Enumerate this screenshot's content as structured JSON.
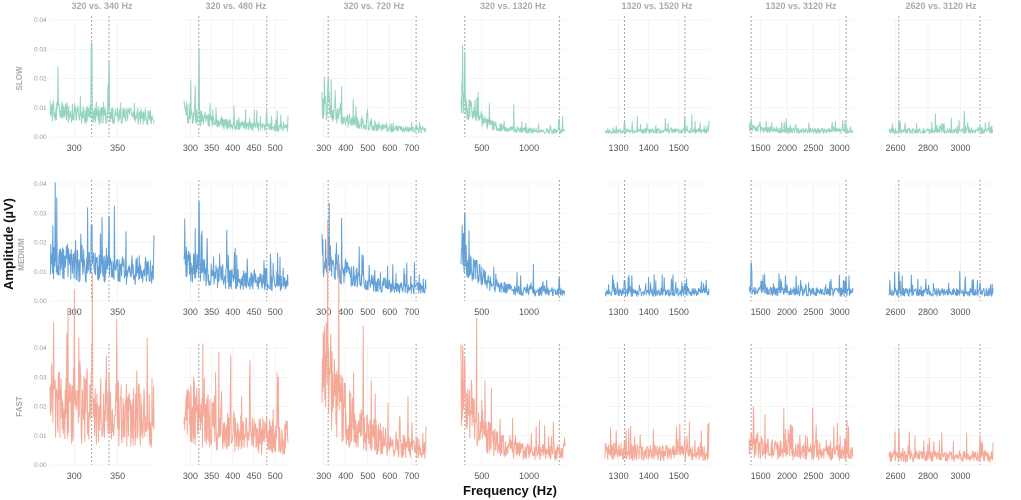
{
  "chart_data": {
    "type": "line",
    "title": "",
    "xlabel": "Frequency (Hz)",
    "ylabel": "Amplitude (µV)",
    "ylim": [
      0,
      0.04
    ],
    "y_ticks": [
      "0.00",
      "0.01",
      "0.02",
      "0.03",
      "0.04"
    ],
    "rows": [
      {
        "name": "SLOW",
        "label": "SLOW",
        "color": "#8fd3b8",
        "noise_factor": 1.0
      },
      {
        "name": "MEDIUM",
        "label": "MEDIUM",
        "color": "#5b9bd5",
        "noise_factor": 1.1
      },
      {
        "name": "FAST",
        "label": "FAST",
        "color": "#f4a494",
        "noise_factor": 1.5
      }
    ],
    "panels": [
      {
        "title": "320 vs. 340 Hz",
        "xlim": [
          272,
          392
        ],
        "xticks": [
          300,
          350
        ],
        "markers": [
          320,
          340
        ],
        "start": {
          "SLOW": 0.009,
          "MEDIUM": 0.014,
          "FAST": 0.022
        },
        "end": {
          "SLOW": 0.006,
          "MEDIUM": 0.009,
          "FAST": 0.015
        },
        "peaks": [
          {
            "freq": 320,
            "SLOW": 0.032,
            "MEDIUM": 0.026,
            "FAST": 0.032
          },
          {
            "freq": 340,
            "SLOW": 0.026,
            "MEDIUM": 0.029,
            "FAST": 0.031
          }
        ]
      },
      {
        "title": "320 vs. 480 Hz",
        "xlim": [
          285,
          530
        ],
        "xticks": [
          300,
          350,
          400,
          450,
          500
        ],
        "markers": [
          320,
          480
        ],
        "start": {
          "SLOW": 0.009,
          "MEDIUM": 0.014,
          "FAST": 0.022
        },
        "end": {
          "SLOW": 0.003,
          "MEDIUM": 0.006,
          "FAST": 0.009
        },
        "peaks": [
          {
            "freq": 320,
            "SLOW": 0.03,
            "MEDIUM": 0.034,
            "FAST": 0.026
          },
          {
            "freq": 480,
            "SLOW": 0.009,
            "MEDIUM": 0.011,
            "FAST": 0.016
          }
        ]
      },
      {
        "title": "320 vs. 720 Hz",
        "xlim": [
          292,
          765
        ],
        "xticks": [
          300,
          400,
          500,
          600,
          700
        ],
        "markers": [
          320,
          720
        ],
        "start": {
          "SLOW": 0.011,
          "MEDIUM": 0.016,
          "FAST": 0.032
        },
        "end": {
          "SLOW": 0.002,
          "MEDIUM": 0.004,
          "FAST": 0.005
        },
        "peaks": [
          {
            "freq": 320,
            "SLOW": 0.02,
            "MEDIUM": 0.022,
            "FAST": 0.04
          },
          {
            "freq": 720,
            "SLOW": 0.004,
            "MEDIUM": 0.005,
            "FAST": 0.009
          }
        ]
      },
      {
        "title": "320 vs. 1320 Hz",
        "xlim": [
          280,
          1380
        ],
        "xticks": [
          500,
          1000
        ],
        "markers": [
          320,
          1320
        ],
        "start": {
          "SLOW": 0.014,
          "MEDIUM": 0.02,
          "FAST": 0.03
        },
        "end": {
          "SLOW": 0.002,
          "MEDIUM": 0.003,
          "FAST": 0.004
        },
        "peaks": [
          {
            "freq": 320,
            "SLOW": 0.029,
            "MEDIUM": 0.03,
            "FAST": 0.032
          },
          {
            "freq": 1320,
            "SLOW": 0.006,
            "MEDIUM": 0.008,
            "FAST": 0.006
          }
        ]
      },
      {
        "title": "1320 vs. 1520 Hz",
        "xlim": [
          1255,
          1600
        ],
        "xticks": [
          1300,
          1400,
          1500
        ],
        "markers": [
          1320,
          1520
        ],
        "start": {
          "SLOW": 0.002,
          "MEDIUM": 0.003,
          "FAST": 0.005
        },
        "end": {
          "SLOW": 0.002,
          "MEDIUM": 0.003,
          "FAST": 0.004
        },
        "peaks": [
          {
            "freq": 1320,
            "SLOW": 0.005,
            "MEDIUM": 0.007,
            "FAST": 0.008
          },
          {
            "freq": 1520,
            "SLOW": 0.007,
            "MEDIUM": 0.006,
            "FAST": 0.009
          }
        ]
      },
      {
        "title": "1320 vs. 3120 Hz",
        "xlim": [
          1280,
          3250
        ],
        "xticks": [
          1500,
          2000,
          2500,
          3000
        ],
        "markers": [
          1320,
          3120
        ],
        "start": {
          "SLOW": 0.003,
          "MEDIUM": 0.004,
          "FAST": 0.007
        },
        "end": {
          "SLOW": 0.002,
          "MEDIUM": 0.003,
          "FAST": 0.004
        },
        "peaks": [
          {
            "freq": 1320,
            "SLOW": 0.006,
            "MEDIUM": 0.013,
            "FAST": 0.011
          },
          {
            "freq": 3120,
            "SLOW": 0.004,
            "MEDIUM": 0.008,
            "FAST": 0.009
          }
        ]
      },
      {
        "title": "2620 vs. 3120 Hz",
        "xlim": [
          2560,
          3200
        ],
        "xticks": [
          2600,
          2800,
          3000
        ],
        "markers": [
          2620,
          3120
        ],
        "start": {
          "SLOW": 0.002,
          "MEDIUM": 0.003,
          "FAST": 0.003
        },
        "end": {
          "SLOW": 0.002,
          "MEDIUM": 0.003,
          "FAST": 0.003
        },
        "peaks": [
          {
            "freq": 2620,
            "SLOW": 0.005,
            "MEDIUM": 0.01,
            "FAST": 0.012
          },
          {
            "freq": 3120,
            "SLOW": 0.004,
            "MEDIUM": 0.006,
            "FAST": 0.01
          }
        ]
      }
    ]
  }
}
